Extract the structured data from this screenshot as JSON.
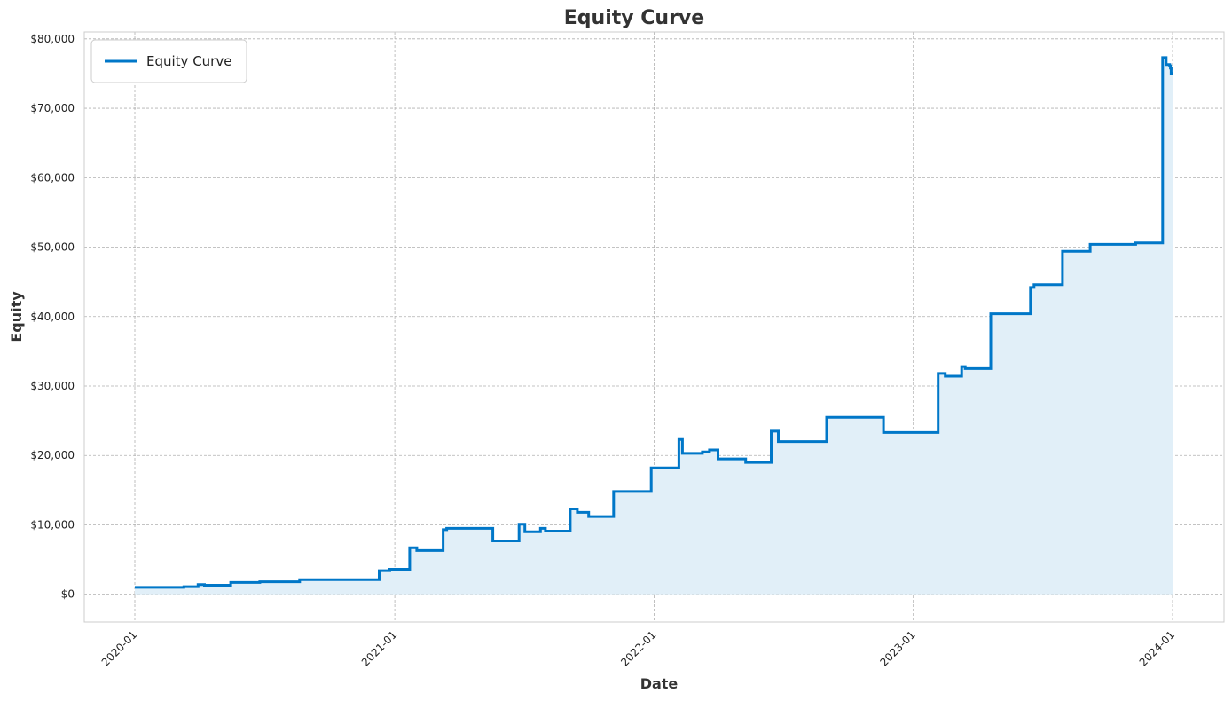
{
  "chart_data": {
    "type": "line",
    "title": "Equity Curve",
    "xlabel": "Date",
    "ylabel": "Equity",
    "x_range": [
      "2020-01-01",
      "2024-01-01"
    ],
    "ylim": [
      -4000,
      81000
    ],
    "y_ticks": [
      0,
      10000,
      20000,
      30000,
      40000,
      50000,
      60000,
      70000,
      80000
    ],
    "y_tick_labels": [
      "$0",
      "$10,000",
      "$20,000",
      "$30,000",
      "$40,000",
      "$50,000",
      "$60,000",
      "$70,000",
      "$80,000"
    ],
    "x_ticks": [
      "2020-01-01",
      "2021-01-01",
      "2022-01-01",
      "2023-01-01",
      "2024-01-01"
    ],
    "x_tick_labels": [
      "2020-01",
      "2021-01",
      "2022-01",
      "2023-01",
      "2024-01"
    ],
    "grid": true,
    "legend_position": "top-left",
    "fill_under_line": true,
    "colors": {
      "line": "#0077c8",
      "fill": "#e1eff8",
      "grid": "#b0b0b0",
      "frame": "#cccccc"
    },
    "series": [
      {
        "name": "Equity Curve",
        "step": true,
        "points": [
          [
            "2020-01-01",
            1000
          ],
          [
            "2020-03-10",
            1100
          ],
          [
            "2020-03-30",
            1400
          ],
          [
            "2020-04-08",
            1300
          ],
          [
            "2020-05-15",
            1700
          ],
          [
            "2020-06-25",
            1800
          ],
          [
            "2020-08-20",
            2100
          ],
          [
            "2020-12-10",
            3400
          ],
          [
            "2020-12-25",
            3600
          ],
          [
            "2021-01-22",
            6700
          ],
          [
            "2021-02-01",
            6300
          ],
          [
            "2021-03-10",
            9300
          ],
          [
            "2021-03-15",
            9500
          ],
          [
            "2021-05-19",
            7700
          ],
          [
            "2021-06-25",
            10100
          ],
          [
            "2021-07-03",
            9000
          ],
          [
            "2021-07-25",
            9500
          ],
          [
            "2021-08-01",
            9100
          ],
          [
            "2021-09-05",
            12300
          ],
          [
            "2021-09-15",
            11800
          ],
          [
            "2021-10-01",
            11200
          ],
          [
            "2021-11-05",
            14800
          ],
          [
            "2021-12-28",
            18200
          ],
          [
            "2022-02-05",
            22300
          ],
          [
            "2022-02-10",
            20300
          ],
          [
            "2022-03-10",
            20500
          ],
          [
            "2022-03-20",
            20800
          ],
          [
            "2022-04-01",
            19500
          ],
          [
            "2022-05-10",
            19000
          ],
          [
            "2022-06-15",
            23500
          ],
          [
            "2022-06-25",
            22000
          ],
          [
            "2022-09-01",
            25500
          ],
          [
            "2022-11-20",
            23300
          ],
          [
            "2023-02-05",
            31800
          ],
          [
            "2023-02-15",
            31400
          ],
          [
            "2023-03-10",
            32800
          ],
          [
            "2023-03-15",
            32500
          ],
          [
            "2023-04-20",
            40400
          ],
          [
            "2023-06-15",
            44200
          ],
          [
            "2023-06-20",
            44600
          ],
          [
            "2023-07-30",
            49400
          ],
          [
            "2023-09-07",
            50400
          ],
          [
            "2023-11-10",
            50600
          ],
          [
            "2023-12-18",
            77300
          ],
          [
            "2023-12-23",
            76300
          ],
          [
            "2023-12-28",
            76100
          ],
          [
            "2023-12-29",
            75800
          ],
          [
            "2023-12-30",
            75000
          ],
          [
            "2024-01-01",
            75000
          ]
        ]
      }
    ]
  }
}
